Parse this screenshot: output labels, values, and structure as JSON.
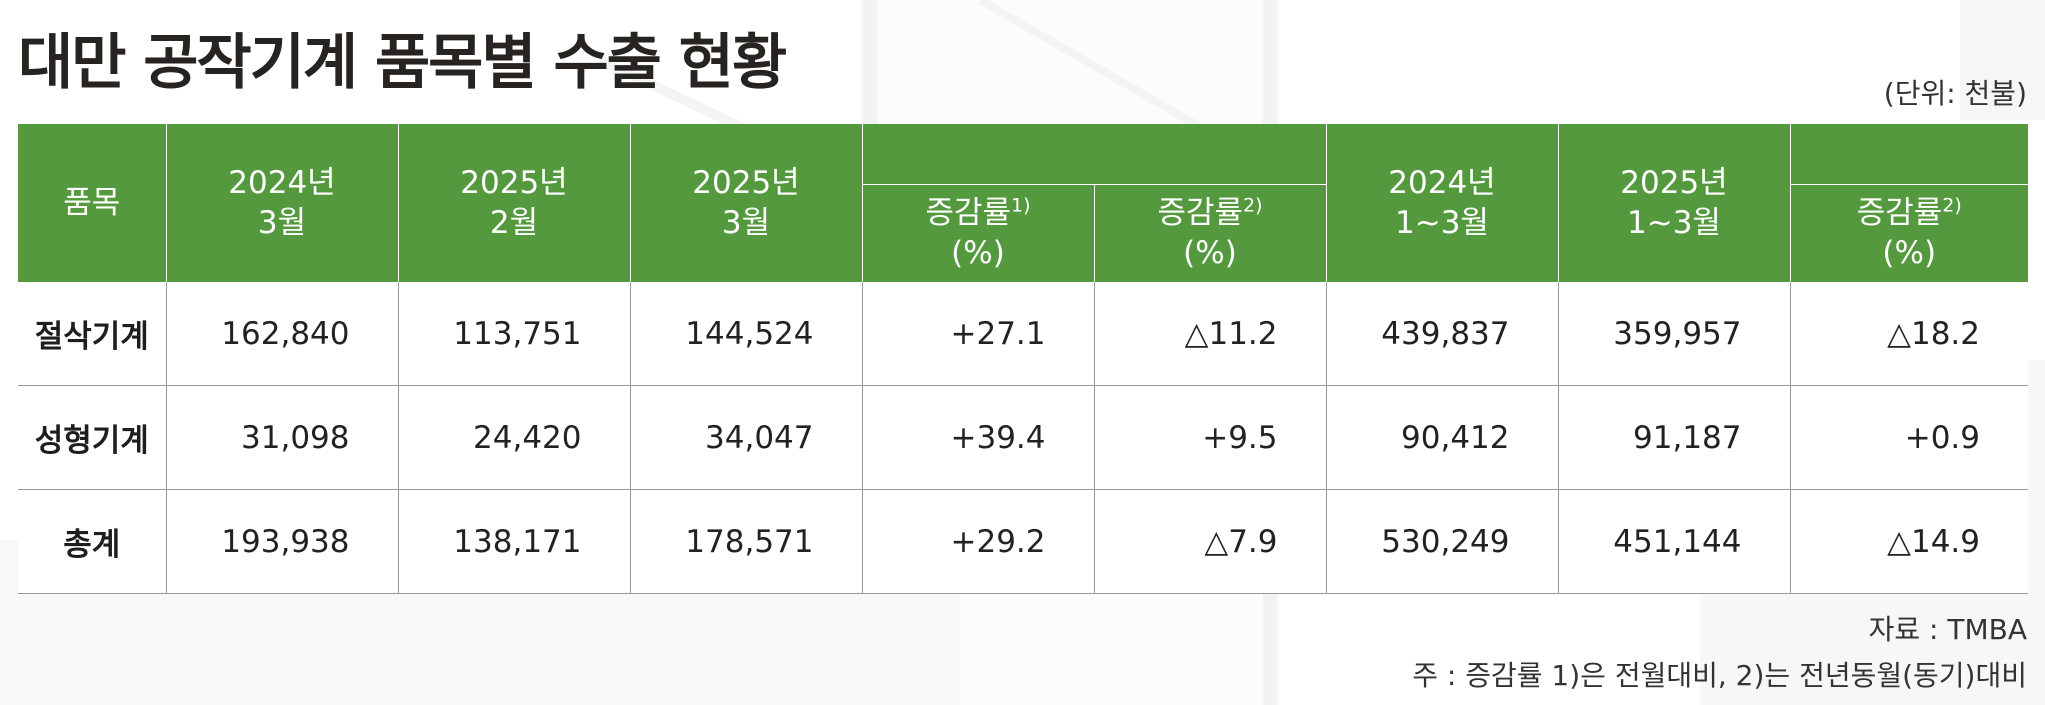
{
  "title": "대만 공작기계 품목별 수출 현황",
  "unit": "(단위: 천불)",
  "header": {
    "item": "품목",
    "col_2024_3": [
      "2024년",
      "3월"
    ],
    "col_2025_2": [
      "2025년",
      "2월"
    ],
    "col_2025_3": [
      "2025년",
      "3월"
    ],
    "rate1": {
      "label": "증감률",
      "sup": "1)",
      "unit": "(%)"
    },
    "rate2": {
      "label": "증감률",
      "sup": "2)",
      "unit": "(%)"
    },
    "col_2024_q": [
      "2024년",
      "1~3월"
    ],
    "col_2025_q": [
      "2025년",
      "1~3월"
    ],
    "rate3": {
      "label": "증감률",
      "sup": "2)",
      "unit": "(%)"
    }
  },
  "rows": [
    {
      "item": "절삭기계",
      "v2024_3": "162,840",
      "v2025_2": "113,751",
      "v2025_3": "144,524",
      "r1": "+27.1",
      "r2": "△11.2",
      "v2024_q": "439,837",
      "v2025_q": "359,957",
      "r3": "△18.2"
    },
    {
      "item": "성형기계",
      "v2024_3": "31,098",
      "v2025_2": "24,420",
      "v2025_3": "34,047",
      "r1": "+39.4",
      "r2": "+9.5",
      "v2024_q": "90,412",
      "v2025_q": "91,187",
      "r3": "+0.9"
    },
    {
      "item": "총계",
      "v2024_3": "193,938",
      "v2025_2": "138,171",
      "v2025_3": "178,571",
      "r1": "+29.2",
      "r2": "△7.9",
      "v2024_q": "530,249",
      "v2025_q": "451,144",
      "r3": "△14.9"
    }
  ],
  "source": "자료 : TMBA",
  "note": "주 : 증감률 1)은 전월대비, 2)는 전년동월(동기)대비",
  "colors": {
    "header_green": "#55993f",
    "title": "#262320",
    "grid_line": "#9a9a9a"
  }
}
